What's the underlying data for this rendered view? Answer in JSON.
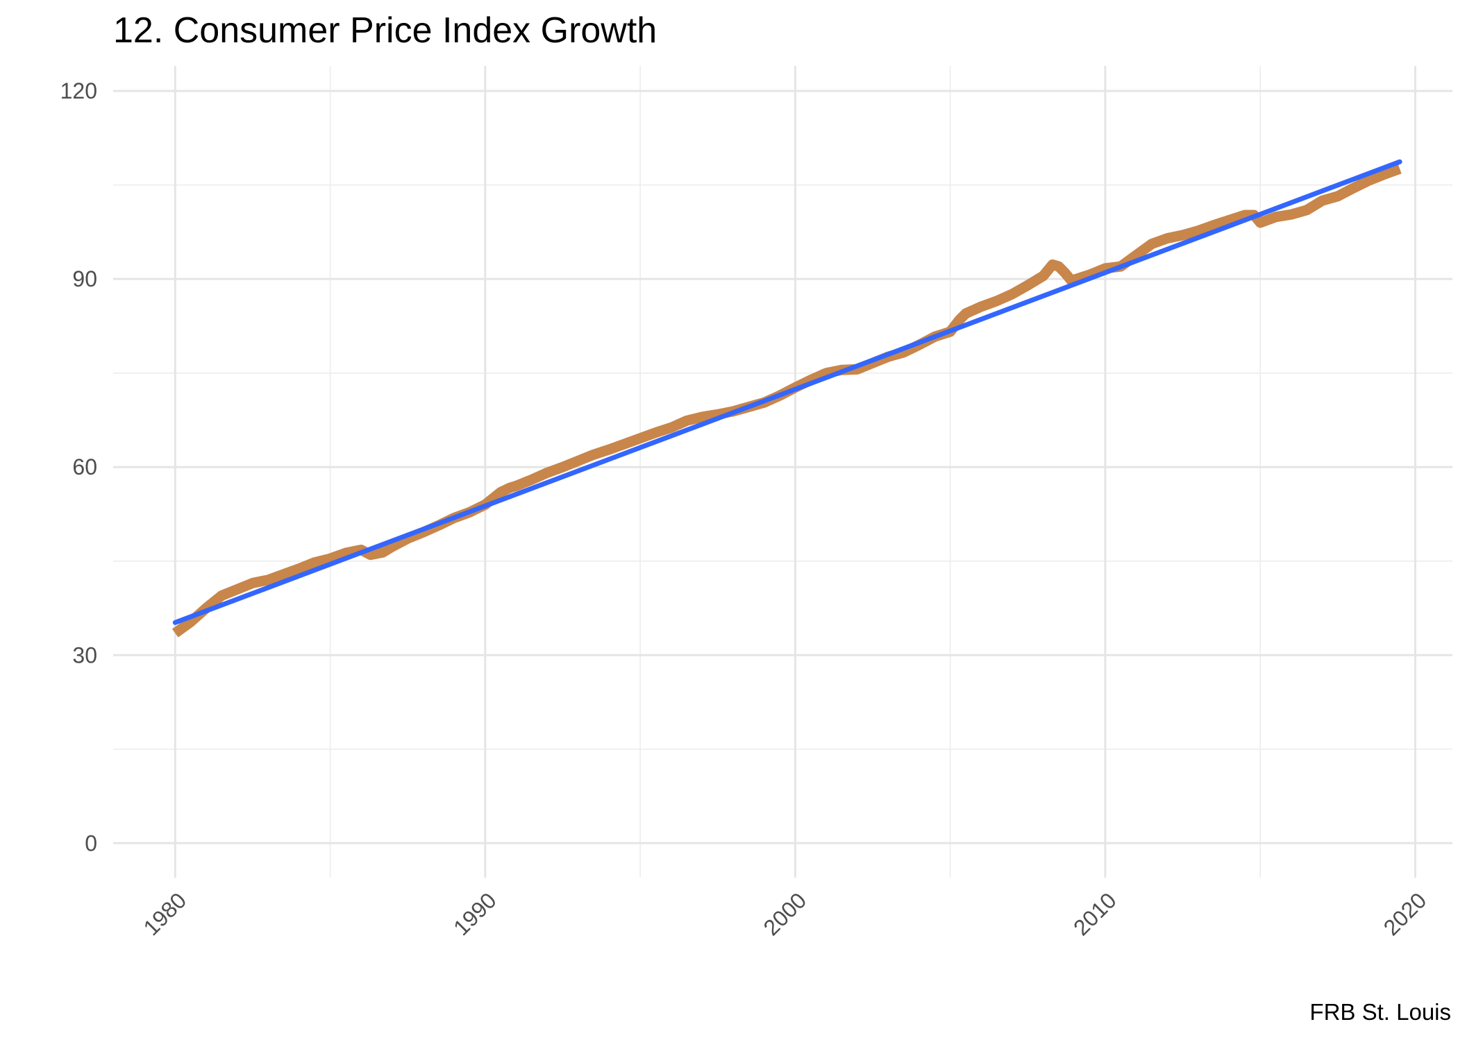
{
  "chart_data": {
    "type": "line",
    "title": "12. Consumer Price Index Growth",
    "caption": "FRB St. Louis",
    "xlabel": "",
    "ylabel": "",
    "xlim": [
      1978,
      2021.2
    ],
    "ylim": [
      -5.5,
      124
    ],
    "x_ticks": [
      1980,
      1990,
      2000,
      2010,
      2020
    ],
    "x_tick_labels": [
      "1980",
      "1990",
      "2000",
      "2010",
      "2020"
    ],
    "x_minor_ticks": [
      1985,
      1995,
      2005,
      2015
    ],
    "y_ticks": [
      0,
      30,
      60,
      90,
      120
    ],
    "y_tick_labels": [
      "0",
      "30",
      "60",
      "90",
      "120"
    ],
    "y_minor_ticks": [
      15,
      45,
      75,
      105
    ],
    "grid": true,
    "legend": "none",
    "series": [
      {
        "color": "#c8864a",
        "x": [
          1980.0,
          1980.5,
          1981.0,
          1981.5,
          1982.0,
          1982.5,
          1983.0,
          1983.5,
          1984.0,
          1984.5,
          1985.0,
          1985.5,
          1986.0,
          1986.3,
          1986.7,
          1987.0,
          1987.5,
          1988.0,
          1988.5,
          1989.0,
          1989.5,
          1990.0,
          1990.5,
          1990.8,
          1991.0,
          1991.5,
          1992.0,
          1992.5,
          1993.0,
          1993.5,
          1994.0,
          1994.5,
          1995.0,
          1995.5,
          1996.0,
          1996.5,
          1997.0,
          1997.5,
          1998.0,
          1998.5,
          1999.0,
          1999.5,
          2000.0,
          2000.5,
          2001.0,
          2001.5,
          2002.0,
          2002.5,
          2003.0,
          2003.5,
          2004.0,
          2004.5,
          2005.0,
          2005.3,
          2005.5,
          2006.0,
          2006.5,
          2007.0,
          2007.5,
          2008.0,
          2008.3,
          2008.5,
          2008.7,
          2008.9,
          2009.0,
          2009.5,
          2010.0,
          2010.5,
          2011.0,
          2011.5,
          2012.0,
          2012.5,
          2013.0,
          2013.5,
          2014.0,
          2014.5,
          2014.8,
          2015.0,
          2015.5,
          2016.0,
          2016.5,
          2017.0,
          2017.5,
          2018.0,
          2018.5,
          2019.0,
          2019.5
        ],
        "y": [
          33.5,
          35.3,
          37.5,
          39.5,
          40.5,
          41.5,
          42.0,
          42.9,
          43.8,
          44.8,
          45.4,
          46.3,
          46.8,
          46.0,
          46.4,
          47.3,
          48.6,
          49.6,
          50.7,
          51.9,
          52.8,
          54.0,
          56.0,
          56.7,
          57.0,
          58.0,
          59.1,
          60.0,
          61.0,
          62.0,
          62.8,
          63.7,
          64.6,
          65.5,
          66.3,
          67.4,
          68.0,
          68.4,
          68.9,
          69.6,
          70.3,
          71.4,
          72.7,
          73.9,
          75.0,
          75.5,
          75.6,
          76.6,
          77.6,
          78.3,
          79.5,
          80.8,
          81.6,
          83.5,
          84.5,
          85.6,
          86.5,
          87.6,
          89.0,
          90.5,
          92.3,
          92.0,
          91.0,
          89.8,
          89.9,
          90.7,
          91.7,
          92.0,
          93.8,
          95.6,
          96.5,
          97.0,
          97.7,
          98.6,
          99.4,
          100.2,
          100.2,
          99.0,
          99.9,
          100.3,
          101.0,
          102.5,
          103.2,
          104.5,
          105.7,
          106.7,
          107.6
        ]
      },
      {
        "color": "#3366ff",
        "x": [
          1980.0,
          2019.5
        ],
        "y": [
          35.2,
          108.7
        ]
      }
    ]
  }
}
